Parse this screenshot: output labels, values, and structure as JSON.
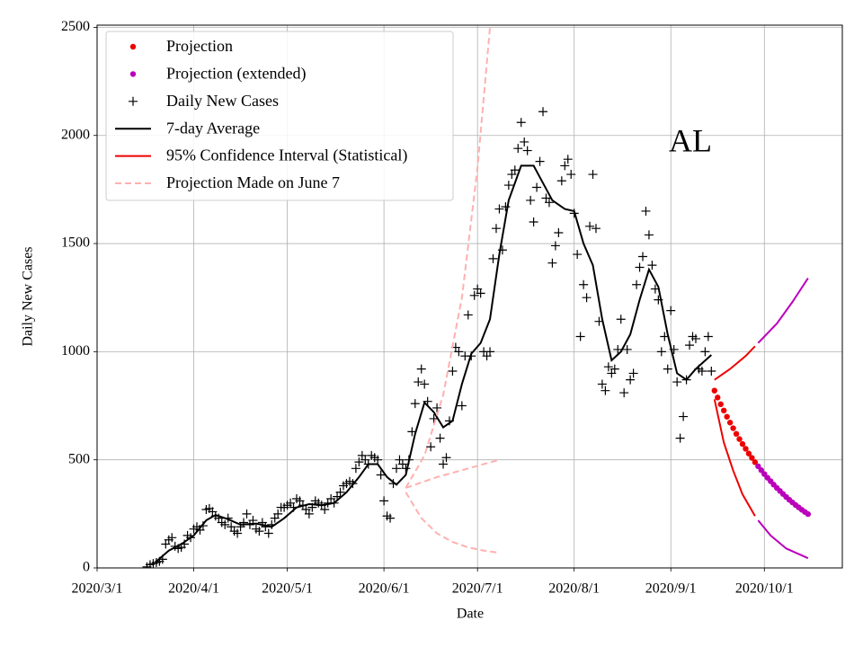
{
  "chart_data": {
    "type": "line",
    "xlabel": "Date",
    "ylabel": "Daily New Cases",
    "annotation": "AL",
    "grid": true,
    "legend": "upper left",
    "xlim": [
      "2020-03-01",
      "2020-10-26"
    ],
    "ylim": [
      0,
      2510
    ],
    "xticks": [
      {
        "value": "2020-03-01",
        "label": "2020/3/1"
      },
      {
        "value": "2020-04-01",
        "label": "2020/4/1"
      },
      {
        "value": "2020-05-01",
        "label": "2020/5/1"
      },
      {
        "value": "2020-06-01",
        "label": "2020/6/1"
      },
      {
        "value": "2020-07-01",
        "label": "2020/7/1"
      },
      {
        "value": "2020-08-01",
        "label": "2020/8/1"
      },
      {
        "value": "2020-09-01",
        "label": "2020/9/1"
      },
      {
        "value": "2020-10-01",
        "label": "2020/10/1"
      }
    ],
    "yticks": [
      0,
      500,
      1000,
      1500,
      2000,
      2500
    ],
    "series": [
      {
        "name": "Projection",
        "color": "#ee0000",
        "style": "dots",
        "x": [
          "2020-09-15",
          "2020-09-16",
          "2020-09-17",
          "2020-09-18",
          "2020-09-19",
          "2020-09-20",
          "2020-09-21",
          "2020-09-22",
          "2020-09-23",
          "2020-09-24",
          "2020-09-25",
          "2020-09-26",
          "2020-09-27",
          "2020-09-28"
        ],
        "values": [
          820,
          788,
          757,
          728,
          699,
          672,
          646,
          620,
          596,
          573,
          551,
          529,
          509,
          489
        ]
      },
      {
        "name": "Projection (extended)",
        "color": "#bb00bb",
        "style": "dots",
        "x": [
          "2020-09-29",
          "2020-09-30",
          "2020-10-01",
          "2020-10-02",
          "2020-10-03",
          "2020-10-04",
          "2020-10-05",
          "2020-10-06",
          "2020-10-07",
          "2020-10-08",
          "2020-10-09",
          "2020-10-10",
          "2020-10-11",
          "2020-10-12",
          "2020-10-13",
          "2020-10-14",
          "2020-10-15"
        ],
        "values": [
          470,
          452,
          434,
          417,
          401,
          385,
          370,
          356,
          342,
          328,
          315,
          303,
          291,
          280,
          269,
          259,
          249
        ]
      },
      {
        "name": "Daily New Cases",
        "color": "#000000",
        "style": "plus",
        "x": [
          "2020-03-17",
          "2020-03-18",
          "2020-03-19",
          "2020-03-20",
          "2020-03-21",
          "2020-03-22",
          "2020-03-23",
          "2020-03-24",
          "2020-03-25",
          "2020-03-26",
          "2020-03-27",
          "2020-03-28",
          "2020-03-29",
          "2020-03-30",
          "2020-03-31",
          "2020-04-01",
          "2020-04-02",
          "2020-04-03",
          "2020-04-04",
          "2020-04-05",
          "2020-04-06",
          "2020-04-07",
          "2020-04-08",
          "2020-04-09",
          "2020-04-10",
          "2020-04-11",
          "2020-04-12",
          "2020-04-13",
          "2020-04-14",
          "2020-04-15",
          "2020-04-16",
          "2020-04-17",
          "2020-04-18",
          "2020-04-19",
          "2020-04-20",
          "2020-04-21",
          "2020-04-22",
          "2020-04-23",
          "2020-04-24",
          "2020-04-25",
          "2020-04-26",
          "2020-04-27",
          "2020-04-28",
          "2020-04-29",
          "2020-04-30",
          "2020-05-01",
          "2020-05-02",
          "2020-05-03",
          "2020-05-04",
          "2020-05-05",
          "2020-05-06",
          "2020-05-07",
          "2020-05-08",
          "2020-05-09",
          "2020-05-10",
          "2020-05-11",
          "2020-05-12",
          "2020-05-13",
          "2020-05-14",
          "2020-05-15",
          "2020-05-16",
          "2020-05-17",
          "2020-05-18",
          "2020-05-19",
          "2020-05-20",
          "2020-05-21",
          "2020-05-22",
          "2020-05-23",
          "2020-05-24",
          "2020-05-25",
          "2020-05-26",
          "2020-05-27",
          "2020-05-28",
          "2020-05-29",
          "2020-05-30",
          "2020-05-31",
          "2020-06-01",
          "2020-06-02",
          "2020-06-03",
          "2020-06-04",
          "2020-06-05",
          "2020-06-06",
          "2020-06-07",
          "2020-06-08",
          "2020-06-09",
          "2020-06-10",
          "2020-06-11",
          "2020-06-12",
          "2020-06-13",
          "2020-06-14",
          "2020-06-15",
          "2020-06-16",
          "2020-06-17",
          "2020-06-18",
          "2020-06-19",
          "2020-06-20",
          "2020-06-21",
          "2020-06-22",
          "2020-06-23",
          "2020-06-24",
          "2020-06-25",
          "2020-06-26",
          "2020-06-27",
          "2020-06-28",
          "2020-06-29",
          "2020-06-30",
          "2020-07-01",
          "2020-07-02",
          "2020-07-03",
          "2020-07-04",
          "2020-07-05",
          "2020-07-06",
          "2020-07-07",
          "2020-07-08",
          "2020-07-09",
          "2020-07-10",
          "2020-07-11",
          "2020-07-12",
          "2020-07-13",
          "2020-07-14",
          "2020-07-15",
          "2020-07-16",
          "2020-07-17",
          "2020-07-18",
          "2020-07-19",
          "2020-07-20",
          "2020-07-21",
          "2020-07-22",
          "2020-07-23",
          "2020-07-24",
          "2020-07-25",
          "2020-07-26",
          "2020-07-27",
          "2020-07-28",
          "2020-07-29",
          "2020-07-30",
          "2020-07-31",
          "2020-08-01",
          "2020-08-02",
          "2020-08-03",
          "2020-08-04",
          "2020-08-05",
          "2020-08-06",
          "2020-08-07",
          "2020-08-08",
          "2020-08-09",
          "2020-08-10",
          "2020-08-11",
          "2020-08-12",
          "2020-08-13",
          "2020-08-14",
          "2020-08-15",
          "2020-08-16",
          "2020-08-17",
          "2020-08-18",
          "2020-08-19",
          "2020-08-20",
          "2020-08-21",
          "2020-08-22",
          "2020-08-23",
          "2020-08-24",
          "2020-08-25",
          "2020-08-26",
          "2020-08-27",
          "2020-08-28",
          "2020-08-29",
          "2020-08-30",
          "2020-08-31",
          "2020-09-01",
          "2020-09-02",
          "2020-09-03",
          "2020-09-04",
          "2020-09-05",
          "2020-09-06",
          "2020-09-07",
          "2020-09-08",
          "2020-09-09",
          "2020-09-10",
          "2020-09-11",
          "2020-09-12",
          "2020-09-13",
          "2020-09-14"
        ],
        "values": [
          5,
          15,
          20,
          25,
          30,
          40,
          110,
          130,
          140,
          100,
          90,
          95,
          110,
          150,
          140,
          180,
          190,
          175,
          195,
          270,
          275,
          260,
          240,
          230,
          210,
          200,
          230,
          190,
          170,
          160,
          190,
          210,
          250,
          200,
          220,
          180,
          170,
          210,
          190,
          160,
          200,
          230,
          250,
          280,
          280,
          290,
          300,
          280,
          320,
          310,
          290,
          270,
          250,
          280,
          310,
          300,
          290,
          270,
          300,
          320,
          300,
          330,
          350,
          380,
          390,
          400,
          390,
          460,
          490,
          520,
          500,
          480,
          520,
          510,
          500,
          430,
          310,
          240,
          230,
          390,
          460,
          500,
          480,
          460,
          500,
          630,
          760,
          860,
          920,
          850,
          770,
          560,
          690,
          740,
          600,
          480,
          510,
          680,
          910,
          1020,
          1000,
          750,
          980,
          1170,
          980,
          1260,
          1290,
          1270,
          1000,
          980,
          1000,
          1430,
          1570,
          1660,
          1470,
          1670,
          1770,
          1820,
          1840,
          1940,
          2060,
          1970,
          1930,
          1700,
          1600,
          1760,
          1880,
          2110,
          1710,
          1690,
          1410,
          1490,
          1550,
          1790,
          1860,
          1890,
          1820,
          1640,
          1450,
          1070,
          1310,
          1250,
          1580,
          1820,
          1570,
          1140,
          850,
          820,
          930,
          900,
          920,
          1010,
          1150,
          810,
          1010,
          870,
          900,
          1310,
          1390,
          1440,
          1650,
          1540,
          1400,
          1290,
          1240,
          1000,
          1070,
          920,
          1190,
          1010,
          860,
          600,
          700,
          870,
          1030,
          1070,
          1060,
          920,
          910,
          1000,
          1070,
          910
        ]
      },
      {
        "name": "7-day Average",
        "color": "#000000",
        "style": "line",
        "x": [
          "2020-03-20",
          "2020-03-24",
          "2020-03-28",
          "2020-04-01",
          "2020-04-05",
          "2020-04-08",
          "2020-04-12",
          "2020-04-16",
          "2020-04-21",
          "2020-04-26",
          "2020-04-30",
          "2020-05-04",
          "2020-05-08",
          "2020-05-12",
          "2020-05-16",
          "2020-05-20",
          "2020-05-24",
          "2020-05-27",
          "2020-05-30",
          "2020-06-02",
          "2020-06-05",
          "2020-06-08",
          "2020-06-11",
          "2020-06-14",
          "2020-06-17",
          "2020-06-20",
          "2020-06-23",
          "2020-06-26",
          "2020-06-29",
          "2020-07-02",
          "2020-07-05",
          "2020-07-08",
          "2020-07-11",
          "2020-07-15",
          "2020-07-19",
          "2020-07-22",
          "2020-07-25",
          "2020-07-29",
          "2020-08-01",
          "2020-08-04",
          "2020-08-07",
          "2020-08-10",
          "2020-08-13",
          "2020-08-16",
          "2020-08-19",
          "2020-08-22",
          "2020-08-25",
          "2020-08-28",
          "2020-08-31",
          "2020-09-03",
          "2020-09-06",
          "2020-09-09",
          "2020-09-14"
        ],
        "values": [
          30,
          80,
          110,
          150,
          220,
          245,
          225,
          200,
          205,
          190,
          230,
          280,
          295,
          290,
          300,
          350,
          420,
          480,
          480,
          420,
          385,
          430,
          620,
          765,
          720,
          650,
          680,
          850,
          990,
          1040,
          1150,
          1450,
          1700,
          1860,
          1860,
          1780,
          1700,
          1660,
          1650,
          1500,
          1400,
          1150,
          960,
          1000,
          1080,
          1240,
          1380,
          1300,
          1080,
          900,
          870,
          920,
          985
        ]
      },
      {
        "name": "95% Confidence Interval (Statistical)",
        "color": "#ee0000",
        "style": "line",
        "x": [
          "2020-09-15",
          "2020-09-20",
          "2020-09-25",
          "2020-09-28"
        ],
        "values": [
          870,
          920,
          980,
          1025
        ]
      },
      {
        "name": "Projection Made on June 7",
        "color": "#ffb0b0",
        "style": "dashed",
        "x": [
          "2020-06-08",
          "2020-06-14",
          "2020-06-20",
          "2020-06-26",
          "2020-07-01",
          "2020-07-05"
        ],
        "values": [
          370,
          520,
          800,
          1250,
          1850,
          2500
        ]
      },
      {
        "color": "#ee0000",
        "style": "line",
        "x": [
          "2020-09-15",
          "2020-09-18",
          "2020-09-21",
          "2020-09-24",
          "2020-09-28"
        ],
        "values": [
          780,
          580,
          450,
          340,
          240
        ]
      },
      {
        "color": "#bb00bb",
        "style": "line",
        "x": [
          "2020-09-29",
          "2020-10-05",
          "2020-10-10",
          "2020-10-15"
        ],
        "values": [
          1040,
          1130,
          1230,
          1340
        ]
      },
      {
        "color": "#bb00bb",
        "style": "line",
        "x": [
          "2020-09-29",
          "2020-10-03",
          "2020-10-08",
          "2020-10-15"
        ],
        "values": [
          220,
          150,
          90,
          45
        ]
      },
      {
        "color": "#ffb0b0",
        "style": "dashed",
        "x": [
          "2020-06-08",
          "2020-06-18",
          "2020-06-28",
          "2020-07-08"
        ],
        "values": [
          370,
          420,
          460,
          500
        ]
      },
      {
        "color": "#ffb0b0",
        "style": "dashed",
        "x": [
          "2020-06-08",
          "2020-06-13",
          "2020-06-18",
          "2020-06-23",
          "2020-06-28",
          "2020-07-03",
          "2020-07-08"
        ],
        "values": [
          350,
          230,
          160,
          120,
          95,
          80,
          70
        ]
      }
    ]
  }
}
